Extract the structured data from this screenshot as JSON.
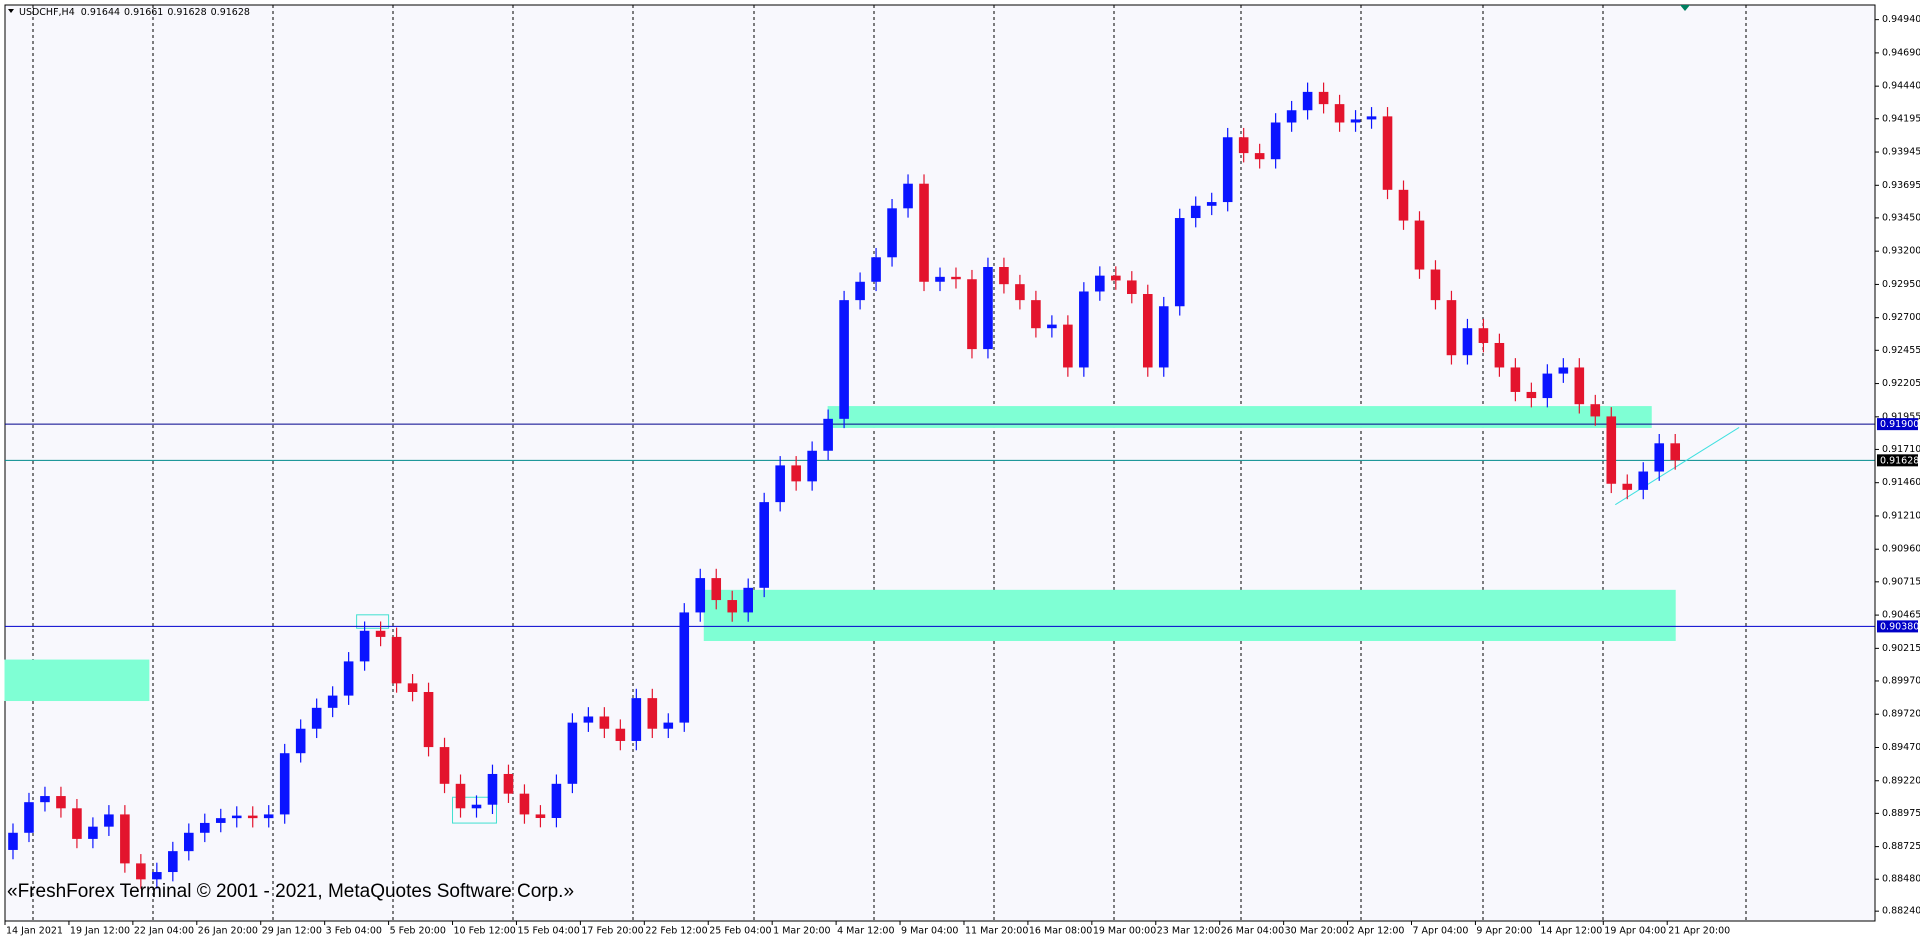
{
  "chart_data": {
    "type": "candlestick",
    "symbol": "USDCHF,H4",
    "quote": [
      0.91644,
      0.91661,
      0.91628,
      0.91628
    ],
    "watermark": "«FreshForex Terminal © 2001 - 2021, MetaQuotes Software Corp.»",
    "up_color": "#0a14ff",
    "down_color": "#e3142d",
    "bars_per_candle": 4,
    "xlim": [
      0,
      468
    ],
    "xticks": [
      {
        "value": 0,
        "label": "14 Jan 2021"
      },
      {
        "value": 16,
        "label": "19 Jan 12:00"
      },
      {
        "value": 32,
        "label": "22 Jan 04:00"
      },
      {
        "value": 48,
        "label": "26 Jan 20:00"
      },
      {
        "value": 64,
        "label": "29 Jan 12:00"
      },
      {
        "value": 80,
        "label": "3 Feb 04:00"
      },
      {
        "value": 96,
        "label": "5 Feb 20:00"
      },
      {
        "value": 112,
        "label": "10 Feb 12:00"
      },
      {
        "value": 128,
        "label": "15 Feb 04:00"
      },
      {
        "value": 144,
        "label": "17 Feb 20:00"
      },
      {
        "value": 160,
        "label": "22 Feb 12:00"
      },
      {
        "value": 176,
        "label": "25 Feb 04:00"
      },
      {
        "value": 192,
        "label": "1 Mar 20:00"
      },
      {
        "value": 208,
        "label": "4 Mar 12:00"
      },
      {
        "value": 224,
        "label": "9 Mar 04:00"
      },
      {
        "value": 240,
        "label": "11 Mar 20:00"
      },
      {
        "value": 256,
        "label": "16 Mar 08:00"
      },
      {
        "value": 272,
        "label": "19 Mar 00:00"
      },
      {
        "value": 288,
        "label": "23 Mar 12:00"
      },
      {
        "value": 304,
        "label": "26 Mar 04:00"
      },
      {
        "value": 320,
        "label": "30 Mar 20:00"
      },
      {
        "value": 336,
        "label": "2 Apr 12:00"
      },
      {
        "value": 352,
        "label": "7 Apr 04:00"
      },
      {
        "value": 368,
        "label": "9 Apr 20:00"
      },
      {
        "value": 384,
        "label": "14 Apr 12:00"
      },
      {
        "value": 400,
        "label": "19 Apr 04:00"
      },
      {
        "value": 416,
        "label": "21 Apr 20:00"
      }
    ],
    "ylim": [
      0.88166,
      0.9505
    ],
    "yticks": [
      {
        "value": 0.9494,
        "label": "0.94940"
      },
      {
        "value": 0.9469,
        "label": "0.94690"
      },
      {
        "value": 0.9444,
        "label": "0.94440"
      },
      0.94195,
      0.93945,
      0.93695,
      {
        "value": 0.9345,
        "label": "0.93450"
      },
      {
        "value": 0.932,
        "label": "0.93200"
      },
      {
        "value": 0.9295,
        "label": "0.92950"
      },
      {
        "value": 0.927,
        "label": "0.92700"
      },
      0.92455,
      0.92205,
      0.91955,
      {
        "value": 0.9171,
        "label": "0.91710"
      },
      {
        "value": 0.9146,
        "label": "0.91460"
      },
      {
        "value": 0.9121,
        "label": "0.91210"
      },
      {
        "value": 0.9096,
        "label": "0.90960"
      },
      0.90715,
      0.90465,
      0.90215,
      {
        "value": 0.8997,
        "label": "0.89970"
      },
      {
        "value": 0.8972,
        "label": "0.89720"
      },
      {
        "value": 0.8947,
        "label": "0.89470"
      },
      {
        "value": 0.8922,
        "label": "0.89220"
      },
      0.88975,
      0.88725,
      {
        "value": 0.8848,
        "label": "0.88480"
      },
      {
        "value": 0.8824,
        "label": "0.88240"
      }
    ],
    "open": [
      0.887,
      0.88829,
      0.89059,
      0.89105,
      0.89013,
      0.88783,
      0.88875,
      0.88967,
      0.88599,
      0.88479,
      0.88534,
      0.88691,
      0.88829,
      0.88903,
      0.88939,
      0.88958,
      0.88939,
      0.88967,
      0.89427,
      0.89611,
      0.89768,
      0.8986,
      0.90117,
      0.90347,
      0.90301,
      0.89952,
      0.89887,
      0.89473,
      0.89197,
      0.89013,
      0.8904,
      0.89271,
      0.89123,
      0.88967,
      0.8894,
      0.89197,
      0.89657,
      0.89703,
      0.89611,
      0.89519,
      0.89841,
      0.89611,
      0.89657,
      0.90485,
      0.90743,
      0.90578,
      0.90485,
      0.9067,
      0.91314,
      0.9159,
      0.9147,
      0.917,
      0.9194,
      0.92832,
      0.9297,
      0.93154,
      0.93522,
      0.93707,
      0.9297,
      0.93007,
      0.92989,
      0.92464,
      0.93081,
      0.92952,
      0.92832,
      0.92621,
      0.92648,
      0.92326,
      0.92897,
      0.93016,
      0.9298,
      0.92878,
      0.92326,
      0.92786,
      0.93449,
      0.93541,
      0.93569,
      0.94056,
      0.93937,
      0.93891,
      0.94167,
      0.94259,
      0.94397,
      0.94305,
      0.94167,
      0.9419,
      0.94213,
      0.93661,
      0.9343,
      0.93062,
      0.92832,
      0.92418,
      0.92621,
      0.9251,
      0.92326,
      0.92142,
      0.92096,
      0.9228,
      0.92326,
      0.9205,
      0.91958,
      0.91452,
      0.91406,
      0.91544,
      0.91756
    ],
    "high": [
      0.88899,
      0.89129,
      0.89175,
      0.89175,
      0.89083,
      0.88945,
      0.89037,
      0.89037,
      0.88669,
      0.88604,
      0.88761,
      0.88899,
      0.88973,
      0.89009,
      0.89028,
      0.89028,
      0.89037,
      0.89497,
      0.89681,
      0.89838,
      0.8993,
      0.90187,
      0.90417,
      0.90417,
      0.90371,
      0.90022,
      0.89957,
      0.89543,
      0.89267,
      0.8911,
      0.89341,
      0.89341,
      0.89193,
      0.89037,
      0.89267,
      0.89727,
      0.89773,
      0.89773,
      0.89681,
      0.89911,
      0.89911,
      0.89727,
      0.90555,
      0.90813,
      0.90813,
      0.90648,
      0.9074,
      0.91384,
      0.9166,
      0.9166,
      0.9177,
      0.9201,
      0.92902,
      0.9304,
      0.93224,
      0.93592,
      0.93777,
      0.93777,
      0.93077,
      0.93077,
      0.93059,
      0.93151,
      0.93151,
      0.93022,
      0.92902,
      0.92718,
      0.92718,
      0.92967,
      0.93086,
      0.93086,
      0.9305,
      0.92948,
      0.92856,
      0.93519,
      0.93611,
      0.93639,
      0.94126,
      0.94126,
      0.94007,
      0.94237,
      0.94329,
      0.94467,
      0.94467,
      0.94375,
      0.9426,
      0.94283,
      0.94283,
      0.93731,
      0.935,
      0.93132,
      0.92902,
      0.92691,
      0.92691,
      0.9258,
      0.92396,
      0.92212,
      0.9235,
      0.92396,
      0.92396,
      0.9212,
      0.92028,
      0.91522,
      0.91614,
      0.91826,
      0.91826
    ],
    "low": [
      0.8863,
      0.88759,
      0.88989,
      0.88943,
      0.88713,
      0.88713,
      0.88805,
      0.88529,
      0.88409,
      0.88409,
      0.88464,
      0.88621,
      0.88759,
      0.88833,
      0.88869,
      0.88869,
      0.88869,
      0.88897,
      0.89357,
      0.89541,
      0.89698,
      0.8979,
      0.90047,
      0.90231,
      0.89882,
      0.89817,
      0.89403,
      0.89127,
      0.88943,
      0.88943,
      0.8897,
      0.89053,
      0.88897,
      0.8887,
      0.8887,
      0.89127,
      0.89587,
      0.89541,
      0.89449,
      0.89449,
      0.89541,
      0.89541,
      0.89587,
      0.90415,
      0.90508,
      0.90415,
      0.90415,
      0.906,
      0.91244,
      0.914,
      0.914,
      0.9163,
      0.9187,
      0.92762,
      0.929,
      0.93084,
      0.93452,
      0.929,
      0.929,
      0.92919,
      0.92394,
      0.92394,
      0.92882,
      0.92762,
      0.92551,
      0.92551,
      0.92256,
      0.92256,
      0.92827,
      0.9291,
      0.92808,
      0.92256,
      0.92256,
      0.92716,
      0.93379,
      0.93471,
      0.93499,
      0.93867,
      0.93821,
      0.93821,
      0.94097,
      0.94189,
      0.94235,
      0.94097,
      0.94097,
      0.9412,
      0.93591,
      0.9336,
      0.92992,
      0.92762,
      0.92348,
      0.92348,
      0.9244,
      0.92256,
      0.92072,
      0.92026,
      0.92026,
      0.9221,
      0.9198,
      0.91888,
      0.91382,
      0.91336,
      0.91336,
      0.91474,
      0.91558
    ],
    "close": [
      0.88829,
      0.89059,
      0.89105,
      0.89013,
      0.88783,
      0.88875,
      0.88967,
      0.88599,
      0.88479,
      0.88534,
      0.88691,
      0.88829,
      0.88903,
      0.88939,
      0.88958,
      0.88939,
      0.88967,
      0.89427,
      0.89611,
      0.89768,
      0.8986,
      0.90117,
      0.90347,
      0.90301,
      0.89952,
      0.89887,
      0.89473,
      0.89197,
      0.89013,
      0.8904,
      0.89271,
      0.89123,
      0.88967,
      0.8894,
      0.89197,
      0.89657,
      0.89703,
      0.89611,
      0.89519,
      0.89841,
      0.89611,
      0.89657,
      0.90485,
      0.90743,
      0.90578,
      0.90485,
      0.9067,
      0.91314,
      0.9159,
      0.9147,
      0.917,
      0.9194,
      0.92832,
      0.9297,
      0.93154,
      0.93522,
      0.93707,
      0.9297,
      0.93007,
      0.92989,
      0.92464,
      0.93081,
      0.92952,
      0.92832,
      0.92621,
      0.92648,
      0.92326,
      0.92897,
      0.93016,
      0.9298,
      0.92878,
      0.92326,
      0.92786,
      0.93449,
      0.93541,
      0.93569,
      0.94056,
      0.93937,
      0.93891,
      0.94167,
      0.94259,
      0.94397,
      0.94305,
      0.94167,
      0.9419,
      0.94213,
      0.93661,
      0.9343,
      0.93062,
      0.92832,
      0.92418,
      0.92621,
      0.9251,
      0.92326,
      0.92142,
      0.92096,
      0.9228,
      0.92326,
      0.9205,
      0.91958,
      0.91452,
      0.91406,
      0.91544,
      0.91756,
      0.91628
    ],
    "hlines": [
      {
        "value": 0.919,
        "label": "0.91900",
        "color": "#00008b",
        "label_bg": "#0000c8"
      },
      {
        "value": 0.91628,
        "color": "#008b8b",
        "label_bg": "#000000"
      },
      {
        "value": 0.9038,
        "label": "0.90380",
        "color": "#0000cd",
        "label_bg": "#0000c8"
      }
    ],
    "zones": [
      {
        "x": [
          206,
          412
        ],
        "y": [
          0.91875,
          0.92032
        ],
        "color": "#7fffd4",
        "fill": true
      },
      {
        "x": [
          175,
          418
        ],
        "y": [
          0.90274,
          0.90651
        ],
        "color": "#7fffd4",
        "fill": true
      },
      {
        "x": [
          0,
          36
        ],
        "y": [
          0.89823,
          0.90127
        ],
        "color": "#7fffd4",
        "fill": true
      },
      {
        "x": [
          88,
          96
        ],
        "y": [
          0.90366,
          0.90467
        ],
        "color": "#40e0d0",
        "fill": false
      },
      {
        "x": [
          112,
          123
        ],
        "y": [
          0.88902,
          0.89096
        ],
        "color": "#40e0d0",
        "fill": false
      }
    ],
    "trendline": {
      "x": [
        403,
        434
      ],
      "y": [
        0.91295,
        0.91875
      ],
      "color": "#40e0e0"
    }
  }
}
